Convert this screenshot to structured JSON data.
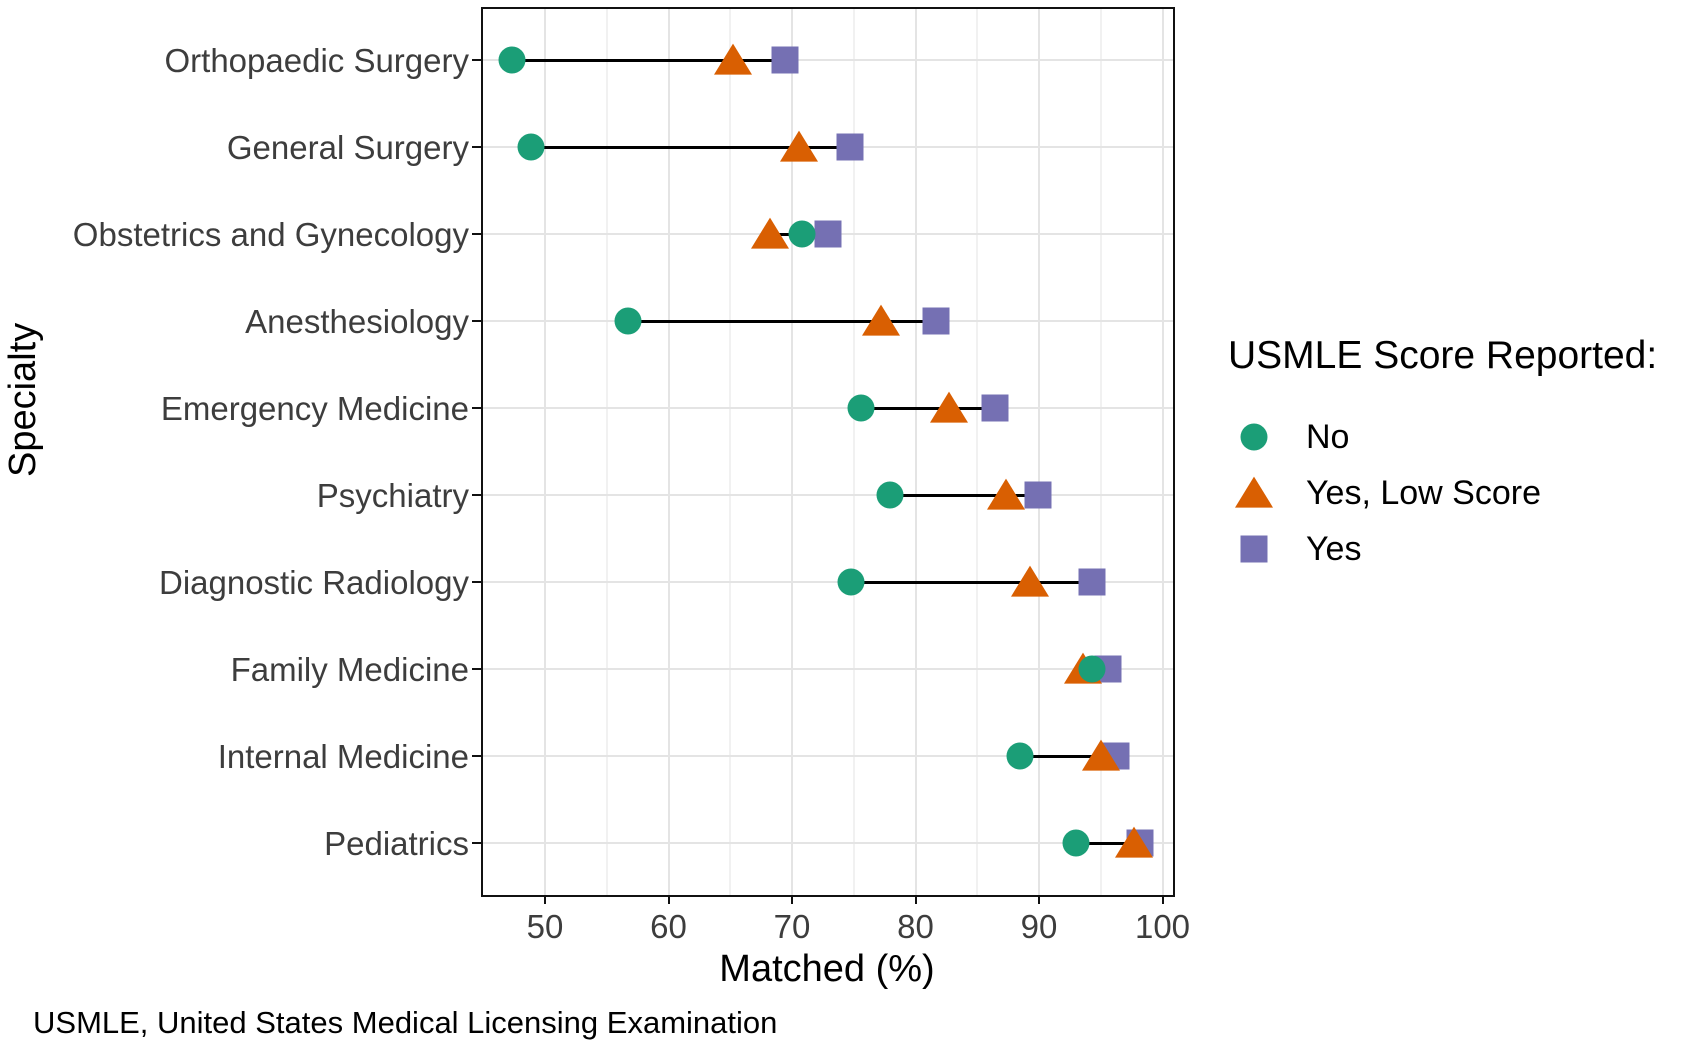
{
  "chart_data": {
    "type": "scatter",
    "subtype": "dumbbell-dot-plot",
    "title": "",
    "xlabel": "Matched (%)",
    "ylabel": "Specialty",
    "footnote": "USMLE, United States Medical Licensing Examination",
    "xlim": [
      44.9,
      100.9
    ],
    "x_major_ticks": [
      50,
      60,
      70,
      80,
      90,
      100
    ],
    "x_minor_gridlines": [
      55,
      65,
      75,
      85,
      95
    ],
    "grid": "on",
    "legend": {
      "title": "USMLE Score Reported:",
      "position": "right",
      "items": [
        {
          "label": "No",
          "marker": "circle",
          "color": "#1B9E77"
        },
        {
          "label": "Yes, Low Score",
          "marker": "triangle",
          "color": "#D95F02"
        },
        {
          "label": "Yes",
          "marker": "square",
          "color": "#7570B3"
        }
      ]
    },
    "categories": [
      "Orthopaedic Surgery",
      "General Surgery",
      "Obstetrics and Gynecology",
      "Anesthesiology",
      "Emergency Medicine",
      "Psychiatry",
      "Diagnostic Radiology",
      "Family Medicine",
      "Internal Medicine",
      "Pediatrics"
    ],
    "series": [
      {
        "name": "No",
        "marker": "circle",
        "color": "#1B9E77",
        "values": [
          47.3,
          48.9,
          70.8,
          56.7,
          75.6,
          77.9,
          74.8,
          94.3,
          88.5,
          93.0
        ]
      },
      {
        "name": "Yes, Low Score",
        "marker": "triangle",
        "color": "#D95F02",
        "values": [
          65.2,
          70.6,
          68.2,
          77.2,
          82.7,
          87.3,
          89.3,
          93.6,
          95.0,
          97.7
        ]
      },
      {
        "name": "Yes",
        "marker": "square",
        "color": "#7570B3",
        "values": [
          69.4,
          74.7,
          72.9,
          81.7,
          86.4,
          89.9,
          94.3,
          95.6,
          96.2,
          98.2
        ]
      }
    ],
    "colors": {
      "grid_major": "#E4E4E4",
      "grid_minor": "#F1F1F1",
      "axis_text": "#3D3D3D",
      "panel_border": "#111111",
      "connector_line": "#000000"
    }
  }
}
